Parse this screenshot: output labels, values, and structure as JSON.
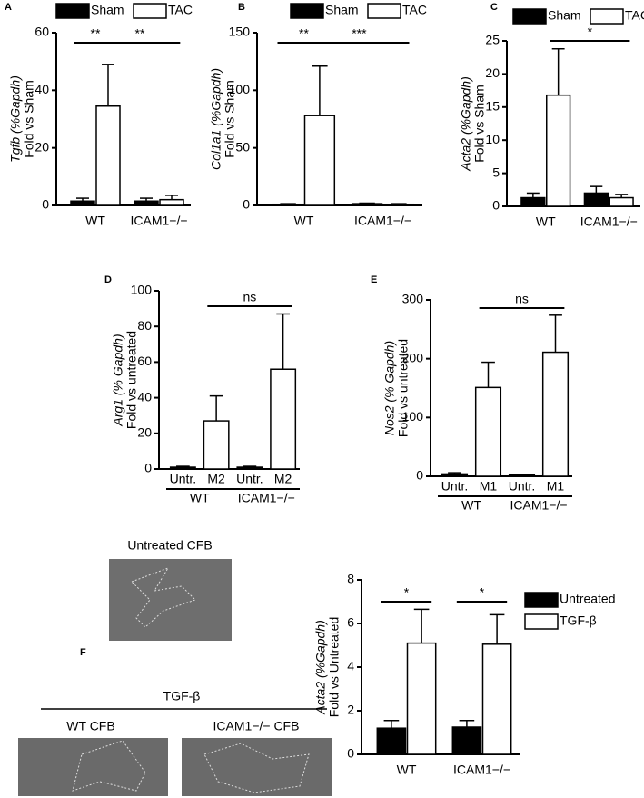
{
  "chart_data": [
    {
      "type": "bar",
      "panel": "A",
      "ylabel": [
        "Tgfb (%Gapdh)",
        "Fold vs Sham"
      ],
      "categories": [
        "WT",
        "ICAM1−/−"
      ],
      "series": [
        {
          "name": "Sham",
          "color": "#000000",
          "values": [
            1.5,
            1.5
          ],
          "errors": [
            1,
            1
          ]
        },
        {
          "name": "TAC",
          "color": "#ffffff",
          "values": [
            34.5,
            2
          ],
          "errors": [
            14.5,
            1.5
          ]
        }
      ],
      "ylim": [
        0,
        60
      ],
      "yticks": [
        0,
        20,
        40,
        60
      ],
      "annotations": [
        "**",
        "**"
      ]
    },
    {
      "type": "bar",
      "panel": "B",
      "ylabel": [
        "Col1a1 (%Gapdh)",
        "Fold vs Sham"
      ],
      "categories": [
        "WT",
        "ICAM1−/−"
      ],
      "series": [
        {
          "name": "Sham",
          "color": "#000000",
          "values": [
            1,
            1.5
          ],
          "errors": [
            0.5,
            0.5
          ]
        },
        {
          "name": "TAC",
          "color": "#ffffff",
          "values": [
            78,
            1
          ],
          "errors": [
            43,
            0.5
          ]
        }
      ],
      "ylim": [
        0,
        150
      ],
      "yticks": [
        0,
        50,
        100,
        150
      ],
      "annotations": [
        "**",
        "***"
      ]
    },
    {
      "type": "bar",
      "panel": "C",
      "ylabel": [
        "Acta2 (%Gapdh)",
        "Fold vs Sham"
      ],
      "categories": [
        "WT",
        "ICAM1−/−"
      ],
      "series": [
        {
          "name": "Sham",
          "color": "#000000",
          "values": [
            1.3,
            2
          ],
          "errors": [
            0.7,
            1
          ]
        },
        {
          "name": "TAC",
          "color": "#ffffff",
          "values": [
            16.8,
            1.3
          ],
          "errors": [
            7,
            0.5
          ]
        }
      ],
      "ylim": [
        0,
        25
      ],
      "yticks": [
        0,
        5,
        10,
        15,
        20,
        25
      ],
      "annotations": [
        "*"
      ]
    },
    {
      "type": "bar",
      "panel": "D",
      "ylabel": [
        "Arg1 (% Gapdh)",
        "Fold vs untreated"
      ],
      "categories": [
        "Untr.",
        "M2",
        "Untr.",
        "M2"
      ],
      "groups": [
        "WT",
        "ICAM1−/−"
      ],
      "values": [
        1,
        27,
        1,
        56
      ],
      "errors": [
        0.5,
        14,
        0.5,
        31
      ],
      "colors": [
        "#000000",
        "#ffffff",
        "#000000",
        "#ffffff"
      ],
      "ylim": [
        0,
        100
      ],
      "yticks": [
        0,
        20,
        40,
        60,
        80,
        100
      ],
      "annotations": [
        "ns"
      ]
    },
    {
      "type": "bar",
      "panel": "E",
      "ylabel": [
        "Nos2 (% Gapdh)",
        "Fold vs untreated"
      ],
      "categories": [
        "Untr.",
        "M1",
        "Untr.",
        "M1"
      ],
      "groups": [
        "WT",
        "ICAM1−/−"
      ],
      "values": [
        4,
        151,
        2,
        211
      ],
      "errors": [
        2,
        43,
        1,
        63
      ],
      "colors": [
        "#000000",
        "#ffffff",
        "#000000",
        "#ffffff"
      ],
      "ylim": [
        0,
        300
      ],
      "yticks": [
        0,
        100,
        200,
        300
      ],
      "annotations": [
        "ns"
      ]
    },
    {
      "type": "bar",
      "panel": "F",
      "ylabel": [
        "Acta2 (%Gapdh)",
        "Fold vs Untreated"
      ],
      "categories": [
        "WT",
        "ICAM1−/−"
      ],
      "series": [
        {
          "name": "Untreated",
          "color": "#000000",
          "values": [
            1.2,
            1.25
          ],
          "errors": [
            0.35,
            0.3
          ]
        },
        {
          "name": "TGF-β",
          "color": "#ffffff",
          "values": [
            5.1,
            5.05
          ],
          "errors": [
            1.55,
            1.35
          ]
        }
      ],
      "ylim": [
        0,
        8
      ],
      "yticks": [
        0,
        2,
        4,
        6,
        8
      ],
      "annotations": [
        "*",
        "*"
      ]
    }
  ],
  "micrographs": {
    "top": "Untreated CFB",
    "group": "TGF-β",
    "left": "WT CFB",
    "right": "ICAM1−/− CFB"
  }
}
